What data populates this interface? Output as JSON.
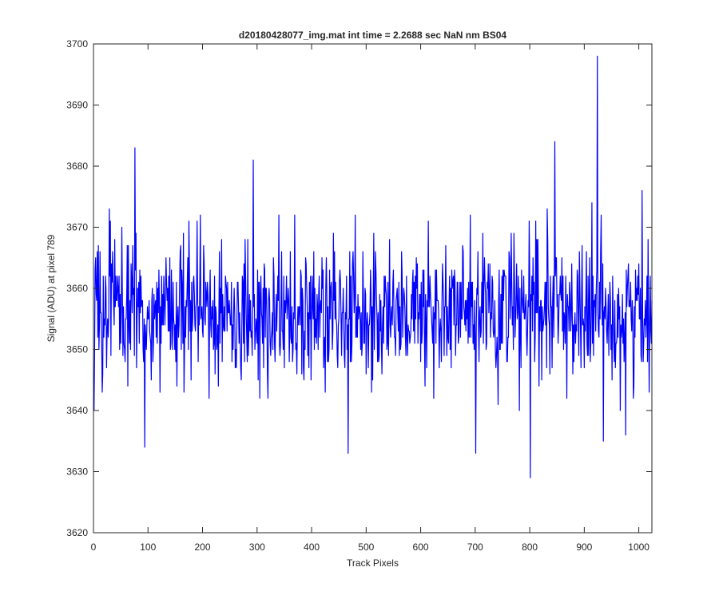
{
  "colors": {
    "line": "#0000ff",
    "axes": "#262626",
    "background": "#ffffff"
  },
  "chart_data": {
    "type": "line",
    "title": "d20180428077_img.mat int time = 2.2688 sec  NaN nm BS04",
    "xlabel": "Track Pixels",
    "ylabel": "Signal (ADU) at pixel 789",
    "xlim": [
      0,
      1024
    ],
    "ylim": [
      3620,
      3700
    ],
    "xticks": [
      0,
      100,
      200,
      300,
      400,
      500,
      600,
      700,
      800,
      900,
      1000
    ],
    "yticks": [
      3620,
      3630,
      3640,
      3650,
      3660,
      3670,
      3680,
      3690,
      3700
    ],
    "grid": false,
    "box": true,
    "series": [
      {
        "color": "#0000ff",
        "n_points": 1024,
        "mean": 3656,
        "std": 6,
        "notable_points": [
          {
            "x": 0,
            "y": 3640
          },
          {
            "x": 75,
            "y": 3683
          },
          {
            "x": 93,
            "y": 3634
          },
          {
            "x": 292,
            "y": 3681
          },
          {
            "x": 466,
            "y": 3633
          },
          {
            "x": 700,
            "y": 3633
          },
          {
            "x": 800,
            "y": 3629
          },
          {
            "x": 845,
            "y": 3684
          },
          {
            "x": 923,
            "y": 3698
          },
          {
            "x": 975,
            "y": 3636
          }
        ]
      }
    ]
  }
}
